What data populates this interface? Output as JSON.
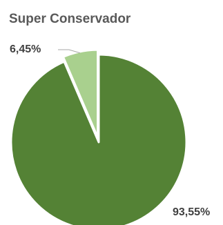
{
  "chart_data": {
    "type": "pie",
    "title": "Super Conservador",
    "slices": [
      {
        "label": "",
        "value": 93.55,
        "data_label": "93,55%",
        "color": "#548235"
      },
      {
        "label": "",
        "value": 6.45,
        "data_label": "6,45%",
        "color": "#a9d08e"
      }
    ],
    "start_angle_deg": 0,
    "direction": "clockwise",
    "exploded_slice": 1,
    "legend": "none",
    "slice_border_color": "#ffffff",
    "title_color": "#595959",
    "label_color": "#404040",
    "leader_line_color": "#a6a6a6"
  }
}
